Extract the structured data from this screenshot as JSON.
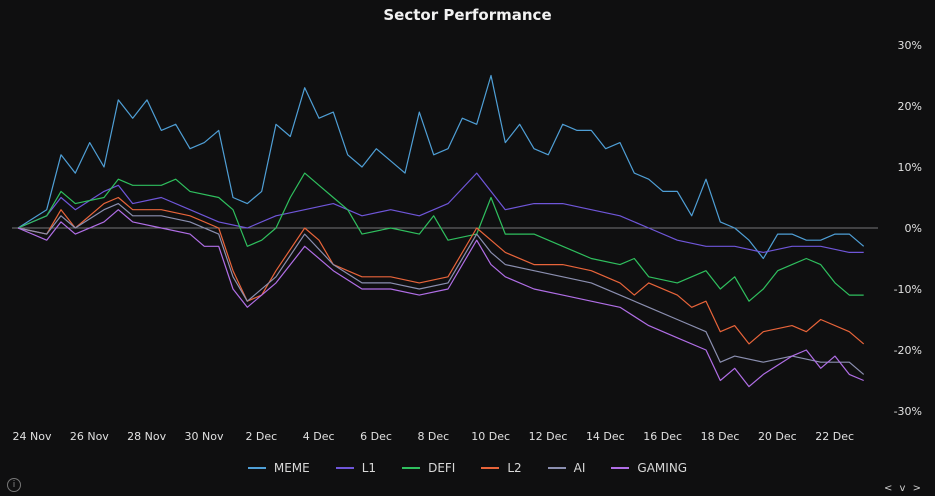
{
  "chart_data": {
    "type": "line",
    "title": "Sector Performance",
    "x_tick_labels": [
      "24 Nov",
      "26 Nov",
      "28 Nov",
      "30 Nov",
      "2 Dec",
      "4 Dec",
      "6 Dec",
      "8 Dec",
      "10 Dec",
      "12 Dec",
      "14 Dec",
      "16 Dec",
      "18 Dec",
      "20 Dec",
      "22 Dec"
    ],
    "x_range_days": [
      0,
      30
    ],
    "y_ticks": [
      30,
      20,
      10,
      0,
      -10,
      -20,
      -30
    ],
    "y_tick_labels": [
      "30%",
      "20%",
      "10%",
      "0%",
      "-10%",
      "-20%",
      "-30%"
    ],
    "ylim": [
      -30,
      30
    ],
    "legend_position": "bottom-center",
    "series": [
      {
        "name": "MEME",
        "color": "#4f9fd6",
        "points": [
          [
            0,
            0
          ],
          [
            1,
            3
          ],
          [
            1.5,
            12
          ],
          [
            2,
            9
          ],
          [
            2.5,
            14
          ],
          [
            3,
            10
          ],
          [
            3.5,
            21
          ],
          [
            4,
            18
          ],
          [
            4.5,
            21
          ],
          [
            5,
            16
          ],
          [
            5.5,
            17
          ],
          [
            6,
            13
          ],
          [
            6.5,
            14
          ],
          [
            7,
            16
          ],
          [
            7.5,
            5
          ],
          [
            8,
            4
          ],
          [
            8.5,
            6
          ],
          [
            9,
            17
          ],
          [
            9.5,
            15
          ],
          [
            10,
            23
          ],
          [
            10.5,
            18
          ],
          [
            11,
            19
          ],
          [
            11.5,
            12
          ],
          [
            12,
            10
          ],
          [
            12.5,
            13
          ],
          [
            13,
            11
          ],
          [
            13.5,
            9
          ],
          [
            14,
            19
          ],
          [
            14.5,
            12
          ],
          [
            15,
            13
          ],
          [
            15.5,
            18
          ],
          [
            16,
            17
          ],
          [
            16.5,
            25
          ],
          [
            17,
            14
          ],
          [
            17.5,
            17
          ],
          [
            18,
            13
          ],
          [
            18.5,
            12
          ],
          [
            19,
            17
          ],
          [
            19.5,
            16
          ],
          [
            20,
            16
          ],
          [
            20.5,
            13
          ],
          [
            21,
            14
          ],
          [
            21.5,
            9
          ],
          [
            22,
            8
          ],
          [
            22.5,
            6
          ],
          [
            23,
            6
          ],
          [
            23.5,
            2
          ],
          [
            24,
            8
          ],
          [
            24.5,
            1
          ],
          [
            25,
            0
          ],
          [
            25.5,
            -2
          ],
          [
            26,
            -5
          ],
          [
            26.5,
            -1
          ],
          [
            27,
            -1
          ],
          [
            27.5,
            -2
          ],
          [
            28,
            -2
          ],
          [
            28.5,
            -1
          ],
          [
            29,
            -1
          ],
          [
            29.5,
            -3
          ]
        ]
      },
      {
        "name": "L1",
        "color": "#6f56d9",
        "points": [
          [
            0,
            0
          ],
          [
            1,
            2
          ],
          [
            1.5,
            5
          ],
          [
            2,
            3
          ],
          [
            3,
            6
          ],
          [
            3.5,
            7
          ],
          [
            4,
            4
          ],
          [
            5,
            5
          ],
          [
            6,
            3
          ],
          [
            7,
            1
          ],
          [
            8,
            0
          ],
          [
            9,
            2
          ],
          [
            10,
            3
          ],
          [
            11,
            4
          ],
          [
            12,
            2
          ],
          [
            13,
            3
          ],
          [
            14,
            2
          ],
          [
            15,
            4
          ],
          [
            16,
            9
          ],
          [
            16.5,
            6
          ],
          [
            17,
            3
          ],
          [
            18,
            4
          ],
          [
            19,
            4
          ],
          [
            20,
            3
          ],
          [
            21,
            2
          ],
          [
            22,
            0
          ],
          [
            23,
            -2
          ],
          [
            24,
            -3
          ],
          [
            25,
            -3
          ],
          [
            26,
            -4
          ],
          [
            27,
            -3
          ],
          [
            28,
            -3
          ],
          [
            29,
            -4
          ],
          [
            29.5,
            -4
          ]
        ]
      },
      {
        "name": "DEFI",
        "color": "#2fbf5e",
        "points": [
          [
            0,
            0
          ],
          [
            1,
            2
          ],
          [
            1.5,
            6
          ],
          [
            2,
            4
          ],
          [
            3,
            5
          ],
          [
            3.5,
            8
          ],
          [
            4,
            7
          ],
          [
            5,
            7
          ],
          [
            5.5,
            8
          ],
          [
            6,
            6
          ],
          [
            7,
            5
          ],
          [
            7.5,
            3
          ],
          [
            8,
            -3
          ],
          [
            8.5,
            -2
          ],
          [
            9,
            0
          ],
          [
            9.5,
            5
          ],
          [
            10,
            9
          ],
          [
            10.5,
            7
          ],
          [
            11,
            5
          ],
          [
            11.5,
            3
          ],
          [
            12,
            -1
          ],
          [
            13,
            0
          ],
          [
            14,
            -1
          ],
          [
            14.5,
            2
          ],
          [
            15,
            -2
          ],
          [
            16,
            -1
          ],
          [
            16.5,
            5
          ],
          [
            17,
            -1
          ],
          [
            18,
            -1
          ],
          [
            19,
            -3
          ],
          [
            20,
            -5
          ],
          [
            21,
            -6
          ],
          [
            21.5,
            -5
          ],
          [
            22,
            -8
          ],
          [
            23,
            -9
          ],
          [
            24,
            -7
          ],
          [
            24.5,
            -10
          ],
          [
            25,
            -8
          ],
          [
            25.5,
            -12
          ],
          [
            26,
            -10
          ],
          [
            26.5,
            -7
          ],
          [
            27,
            -6
          ],
          [
            27.5,
            -5
          ],
          [
            28,
            -6
          ],
          [
            28.5,
            -9
          ],
          [
            29,
            -11
          ],
          [
            29.5,
            -11
          ]
        ]
      },
      {
        "name": "L2",
        "color": "#e8643a",
        "points": [
          [
            0,
            0
          ],
          [
            1,
            -1
          ],
          [
            1.5,
            3
          ],
          [
            2,
            0
          ],
          [
            3,
            4
          ],
          [
            3.5,
            5
          ],
          [
            4,
            3
          ],
          [
            5,
            3
          ],
          [
            6,
            2
          ],
          [
            7,
            0
          ],
          [
            7.5,
            -7
          ],
          [
            8,
            -12
          ],
          [
            8.5,
            -11
          ],
          [
            9,
            -7
          ],
          [
            10,
            0
          ],
          [
            10.5,
            -2
          ],
          [
            11,
            -6
          ],
          [
            12,
            -8
          ],
          [
            13,
            -8
          ],
          [
            14,
            -9
          ],
          [
            15,
            -8
          ],
          [
            16,
            0
          ],
          [
            16.5,
            -2
          ],
          [
            17,
            -4
          ],
          [
            18,
            -6
          ],
          [
            19,
            -6
          ],
          [
            20,
            -7
          ],
          [
            21,
            -9
          ],
          [
            21.5,
            -11
          ],
          [
            22,
            -9
          ],
          [
            23,
            -11
          ],
          [
            23.5,
            -13
          ],
          [
            24,
            -12
          ],
          [
            24.5,
            -17
          ],
          [
            25,
            -16
          ],
          [
            25.5,
            -19
          ],
          [
            26,
            -17
          ],
          [
            27,
            -16
          ],
          [
            27.5,
            -17
          ],
          [
            28,
            -15
          ],
          [
            29,
            -17
          ],
          [
            29.5,
            -19
          ]
        ]
      },
      {
        "name": "AI",
        "color": "#8b8fb0",
        "points": [
          [
            0,
            0
          ],
          [
            1,
            -1
          ],
          [
            1.5,
            2
          ],
          [
            2,
            0
          ],
          [
            3,
            3
          ],
          [
            3.5,
            4
          ],
          [
            4,
            2
          ],
          [
            5,
            2
          ],
          [
            6,
            1
          ],
          [
            7,
            -1
          ],
          [
            7.5,
            -8
          ],
          [
            8,
            -12
          ],
          [
            9,
            -8
          ],
          [
            10,
            -1
          ],
          [
            11,
            -6
          ],
          [
            12,
            -9
          ],
          [
            13,
            -9
          ],
          [
            14,
            -10
          ],
          [
            15,
            -9
          ],
          [
            16,
            -1
          ],
          [
            16.5,
            -4
          ],
          [
            17,
            -6
          ],
          [
            18,
            -7
          ],
          [
            19,
            -8
          ],
          [
            20,
            -9
          ],
          [
            21,
            -11
          ],
          [
            22,
            -13
          ],
          [
            23,
            -15
          ],
          [
            24,
            -17
          ],
          [
            24.5,
            -22
          ],
          [
            25,
            -21
          ],
          [
            26,
            -22
          ],
          [
            27,
            -21
          ],
          [
            28,
            -22
          ],
          [
            29,
            -22
          ],
          [
            29.5,
            -24
          ]
        ]
      },
      {
        "name": "GAMING",
        "color": "#b06ee6",
        "points": [
          [
            0,
            0
          ],
          [
            1,
            -2
          ],
          [
            1.5,
            1
          ],
          [
            2,
            -1
          ],
          [
            3,
            1
          ],
          [
            3.5,
            3
          ],
          [
            4,
            1
          ],
          [
            5,
            0
          ],
          [
            6,
            -1
          ],
          [
            6.5,
            -3
          ],
          [
            7,
            -3
          ],
          [
            7.5,
            -10
          ],
          [
            8,
            -13
          ],
          [
            9,
            -9
          ],
          [
            10,
            -3
          ],
          [
            11,
            -7
          ],
          [
            12,
            -10
          ],
          [
            13,
            -10
          ],
          [
            14,
            -11
          ],
          [
            15,
            -10
          ],
          [
            16,
            -2
          ],
          [
            16.5,
            -6
          ],
          [
            17,
            -8
          ],
          [
            18,
            -10
          ],
          [
            19,
            -11
          ],
          [
            20,
            -12
          ],
          [
            21,
            -13
          ],
          [
            22,
            -16
          ],
          [
            23,
            -18
          ],
          [
            24,
            -20
          ],
          [
            24.5,
            -25
          ],
          [
            25,
            -23
          ],
          [
            25.5,
            -26
          ],
          [
            26,
            -24
          ],
          [
            27,
            -21
          ],
          [
            27.5,
            -20
          ],
          [
            28,
            -23
          ],
          [
            28.5,
            -21
          ],
          [
            29,
            -24
          ],
          [
            29.5,
            -25
          ]
        ]
      }
    ]
  },
  "controls": {
    "info_label": "i",
    "nav_label": "< v >"
  }
}
